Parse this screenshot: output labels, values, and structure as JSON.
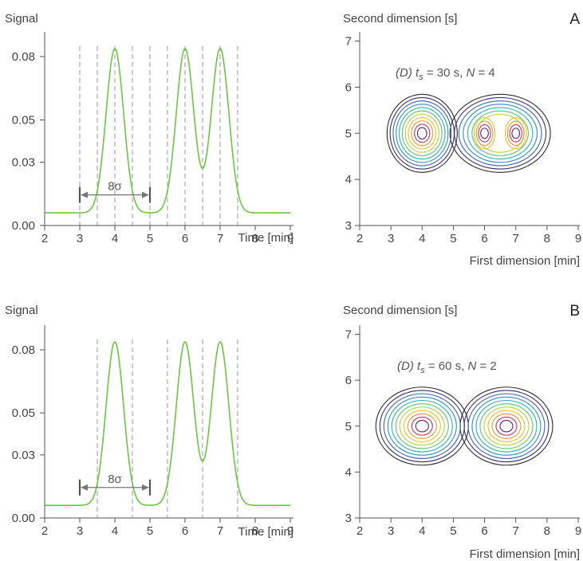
{
  "chart_data": [
    {
      "id": "A-signal",
      "type": "line",
      "ylabel": "Signal",
      "xlabel": "Time [min]",
      "xlim": [
        2,
        9
      ],
      "ylim": [
        0,
        0.09
      ],
      "xticks": [
        2,
        3,
        4,
        5,
        6,
        7,
        8,
        9
      ],
      "yticks": [
        "0.00",
        "0.03",
        "0.05",
        "0.08"
      ],
      "ytick_values": [
        0.0,
        0.03,
        0.05,
        0.08
      ],
      "baseline": 0.006,
      "peaks": [
        {
          "center": 4,
          "height": 0.07,
          "sigma": 0.25
        },
        {
          "center": 6,
          "height": 0.07,
          "sigma": 0.25
        },
        {
          "center": 7,
          "height": 0.07,
          "sigma": 0.25
        }
      ],
      "modulation_markers": [
        3,
        3.5,
        4,
        4.5,
        5,
        5.5,
        6,
        6.5,
        7,
        7.5
      ],
      "span": {
        "from": 3,
        "to": 5,
        "y": 0.0145,
        "label": "8σ"
      },
      "grid": false,
      "line_color": "#6cc644"
    },
    {
      "id": "A-contour",
      "type": "contour",
      "ylabel": "Second dimension [s]",
      "xlabel": "First dimension [min]",
      "panel_letter": "A",
      "annotation": {
        "prefix": "(D) ",
        "var": "t",
        "sub": "s",
        "rest": " = 30 s, ",
        "nvar": "N",
        "nrest": " = 4"
      },
      "xlim": [
        2,
        9
      ],
      "ylim": [
        3,
        7.2
      ],
      "xticks": [
        2,
        3,
        4,
        5,
        6,
        7,
        8,
        9
      ],
      "yticks": [
        3,
        4,
        5,
        6,
        7
      ],
      "modulation_time_s": 30,
      "N": 4,
      "peak_centers": [
        [
          4,
          5
        ],
        [
          6,
          5
        ],
        [
          7,
          5
        ]
      ],
      "grid": false
    },
    {
      "id": "B-signal",
      "type": "line",
      "ylabel": "Signal",
      "xlabel": "Time [min]",
      "xlim": [
        2,
        9
      ],
      "ylim": [
        0,
        0.09
      ],
      "xticks": [
        2,
        3,
        4,
        5,
        6,
        7,
        8,
        9
      ],
      "yticks": [
        "0.00",
        "0.03",
        "0.05",
        "0.08"
      ],
      "ytick_values": [
        0.0,
        0.03,
        0.05,
        0.08
      ],
      "baseline": 0.006,
      "peaks": [
        {
          "center": 4,
          "height": 0.07,
          "sigma": 0.25
        },
        {
          "center": 6,
          "height": 0.07,
          "sigma": 0.25
        },
        {
          "center": 7,
          "height": 0.07,
          "sigma": 0.25
        }
      ],
      "modulation_markers": [
        3.5,
        4.5,
        5.5,
        6.5,
        7.5
      ],
      "span": {
        "from": 3,
        "to": 5,
        "y": 0.0145,
        "label": "8σ"
      },
      "grid": false,
      "line_color": "#6cc644"
    },
    {
      "id": "B-contour",
      "type": "contour",
      "ylabel": "Second dimension [s]",
      "xlabel": "First dimension [min]",
      "panel_letter": "B",
      "annotation": {
        "prefix": "(D) ",
        "var": "t",
        "sub": "s",
        "rest": " = 60 s, ",
        "nvar": "N",
        "nrest": " = 2"
      },
      "xlim": [
        2,
        9
      ],
      "ylim": [
        3,
        7.2
      ],
      "xticks": [
        2,
        3,
        4,
        5,
        6,
        7,
        8,
        9
      ],
      "yticks": [
        3,
        4,
        5,
        6,
        7
      ],
      "modulation_time_s": 60,
      "N": 2,
      "peak_centers": [
        [
          4,
          5
        ],
        [
          6.7,
          5
        ]
      ],
      "grid": false
    }
  ],
  "contour_colors": [
    "#2b2b2b",
    "#3b2f7a",
    "#3f61b8",
    "#2f8fc4",
    "#26b5b8",
    "#5dc56c",
    "#b5d43e",
    "#f2c12b",
    "#e89a2a",
    "#c7316f",
    "#6b1f6e"
  ]
}
